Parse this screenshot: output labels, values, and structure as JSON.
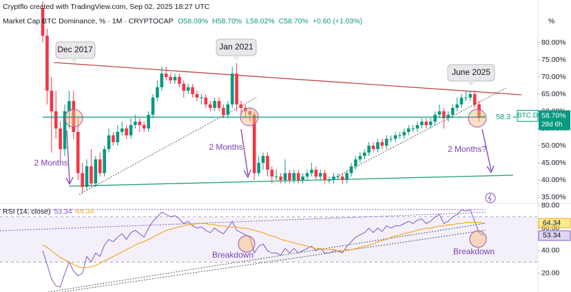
{
  "chart_data": {
    "type": "candlestick",
    "attribution": "Cryptflo created with TradingView.com, Sep 02, 2025 18:27 UTC",
    "title": "Market Cap BTC Dominance, %",
    "interval": "1M",
    "source": "CRYPTOCAP",
    "header_values": [
      "O58.09%",
      "H58.70%",
      "L58.02%",
      "C58.70%"
    ],
    "change_label": "+0.60 (+1.03%)",
    "unit_label": "%",
    "up_color": "#089981",
    "down_color": "#f23645",
    "open": [
      90,
      82,
      66,
      60,
      55,
      49,
      60,
      63,
      54,
      42,
      38,
      44,
      39,
      46,
      42,
      49,
      53,
      51,
      54,
      55,
      53,
      56,
      57,
      56,
      55,
      59,
      64,
      67,
      71,
      70,
      69,
      70,
      68,
      66,
      67,
      65,
      64,
      64,
      62,
      61,
      63,
      61,
      59,
      62,
      71,
      62,
      61,
      60,
      59,
      42,
      45,
      47,
      43,
      41,
      41,
      40,
      42,
      40,
      42,
      40,
      41,
      42,
      43,
      41,
      42,
      40,
      40,
      41,
      41,
      40,
      42,
      44,
      46,
      47,
      48,
      50,
      49,
      51,
      50,
      52,
      52,
      53,
      53,
      54,
      55,
      55,
      56,
      57,
      56,
      57,
      59,
      60,
      58,
      59,
      61,
      62,
      64,
      64,
      65,
      62,
      58.09
    ],
    "high": [
      92,
      84,
      70,
      66,
      57,
      62,
      66,
      66,
      58,
      45,
      46,
      49,
      47,
      48,
      50,
      55,
      54,
      56,
      57,
      56,
      58,
      59,
      58,
      57,
      60,
      65,
      69,
      73,
      73,
      71,
      71,
      71,
      69,
      68,
      68,
      66,
      65,
      65,
      63,
      64,
      64,
      62,
      63,
      73,
      74,
      63,
      62,
      61,
      60,
      47,
      48,
      48,
      44,
      43,
      42,
      46,
      43,
      43,
      43,
      42,
      43,
      45,
      44,
      43,
      43,
      41,
      42,
      42,
      42,
      43,
      45,
      47,
      48,
      49,
      51,
      51,
      52,
      52,
      53,
      53,
      54,
      54,
      55,
      56,
      56,
      57,
      58,
      58,
      58,
      60,
      62,
      61,
      60,
      62,
      64,
      65,
      66,
      66,
      66,
      63,
      58.7
    ],
    "low": [
      80,
      62,
      48,
      52,
      46,
      47,
      55,
      52,
      40,
      36,
      37,
      38,
      38,
      41,
      41,
      48,
      50,
      50,
      53,
      52,
      52,
      55,
      54,
      54,
      54,
      58,
      63,
      66,
      69,
      68,
      68,
      67,
      64,
      65,
      64,
      63,
      62,
      61,
      60,
      60,
      60,
      58,
      58,
      61,
      60,
      59,
      58,
      57,
      40,
      41,
      43,
      41,
      39,
      40,
      39,
      39,
      39,
      39,
      39,
      39,
      40,
      41,
      40,
      40,
      39,
      39,
      39,
      40,
      39,
      39,
      41,
      43,
      45,
      46,
      47,
      48,
      48,
      49,
      49,
      51,
      51,
      52,
      52,
      53,
      54,
      54,
      55,
      55,
      55,
      56,
      58,
      55,
      57,
      58,
      60,
      61,
      63,
      63,
      61,
      57,
      58.02
    ],
    "close": [
      82,
      66,
      60,
      55,
      49,
      60,
      63,
      54,
      42,
      38,
      44,
      39,
      46,
      42,
      49,
      53,
      51,
      54,
      55,
      53,
      56,
      57,
      56,
      55,
      59,
      64,
      67,
      71,
      70,
      69,
      70,
      68,
      66,
      67,
      65,
      64,
      64,
      62,
      61,
      63,
      61,
      59,
      62,
      71,
      62,
      61,
      60,
      59,
      42,
      45,
      47,
      43,
      41,
      41,
      40,
      42,
      40,
      42,
      40,
      41,
      42,
      43,
      41,
      42,
      40,
      40,
      41,
      41,
      40,
      42,
      44,
      46,
      47,
      48,
      50,
      49,
      51,
      50,
      52,
      52,
      53,
      53,
      54,
      55,
      55,
      56,
      57,
      56,
      57,
      59,
      60,
      58,
      59,
      61,
      62,
      64,
      64,
      65,
      62,
      58.09,
      58.7
    ],
    "ylim": [
      33.4,
      92.4
    ],
    "yticks": [
      {
        "value": 35,
        "label": "35.00%"
      },
      {
        "value": 40,
        "label": "40.00%"
      },
      {
        "value": 45,
        "label": "45.00%"
      },
      {
        "value": 50,
        "label": "50.00%"
      },
      {
        "value": 55,
        "label": "55.00%"
      },
      {
        "value": 60,
        "label": "60.00%"
      },
      {
        "value": 65,
        "label": "65.00%"
      },
      {
        "value": 70,
        "label": "70.00%"
      },
      {
        "value": 75,
        "label": "75.00%"
      },
      {
        "value": 80,
        "label": "80.00%"
      }
    ],
    "level": {
      "value": 58.3,
      "label": "58.3",
      "color": "#089981"
    },
    "symbol": "BTC.D",
    "last_price": {
      "value": 58.7,
      "label": "58.70%"
    },
    "countdown": "28d 6h",
    "annotations": [
      "Dec 2017",
      "Jan 2021",
      "June 2025",
      "2 Months",
      "2 Months",
      "2 Months?",
      "Breakdown",
      "Breakdown"
    ],
    "rsi": {
      "type": "line",
      "title": "RSI (14, close)",
      "ylim": [
        3.6,
        81.2
      ],
      "band": [
        30,
        70
      ],
      "yticks": [
        {
          "value": 20,
          "label": "20.00"
        },
        {
          "value": 40,
          "label": "40.00"
        },
        {
          "value": 60,
          "label": "60.00"
        },
        {
          "value": 80,
          "label": "80.00"
        }
      ],
      "series": [
        {
          "color": "#7e57c2",
          "last_label": "53.34",
          "values": [
            40,
            28,
            15,
            9,
            8,
            20,
            30,
            22,
            18,
            20,
            35,
            30,
            38,
            35,
            45,
            50,
            48,
            52,
            55,
            50,
            56,
            58,
            55,
            52,
            60,
            66,
            70,
            74,
            72,
            70,
            71,
            68,
            64,
            66,
            62,
            60,
            61,
            58,
            56,
            60,
            57,
            55,
            60,
            66,
            58,
            56,
            54,
            52,
            38,
            44,
            46,
            40,
            38,
            38,
            36,
            42,
            38,
            42,
            38,
            40,
            42,
            44,
            40,
            42,
            38,
            38,
            40,
            40,
            38,
            44,
            48,
            52,
            54,
            56,
            60,
            56,
            60,
            57,
            62,
            60,
            62,
            62,
            64,
            66,
            64,
            67,
            68,
            64,
            66,
            70,
            72,
            64,
            66,
            70,
            72,
            76,
            75,
            76,
            66,
            56,
            53.34
          ]
        },
        {
          "color": "#f9a825",
          "last_label": "64.34",
          "values": [
            45,
            43,
            40,
            37,
            34,
            32,
            30,
            28,
            26,
            25,
            25,
            26,
            27,
            29,
            31,
            33,
            35,
            37,
            39,
            41,
            43,
            45,
            47,
            48,
            50,
            52,
            54,
            56,
            58,
            59,
            60,
            61,
            62,
            63,
            63,
            64,
            64,
            64,
            63,
            63,
            62,
            62,
            61,
            61,
            61,
            60,
            60,
            59,
            58,
            57,
            56,
            54,
            53,
            52,
            50,
            49,
            48,
            47,
            46,
            45,
            44,
            43,
            42,
            42,
            41,
            41,
            41,
            40,
            40,
            41,
            41,
            42,
            43,
            44,
            45,
            46,
            48,
            49,
            50,
            52,
            53,
            54,
            55,
            56,
            57,
            58,
            59,
            60,
            60,
            61,
            62,
            62,
            63,
            63,
            64,
            64,
            65,
            65,
            65,
            65,
            64.34
          ]
        }
      ]
    }
  }
}
